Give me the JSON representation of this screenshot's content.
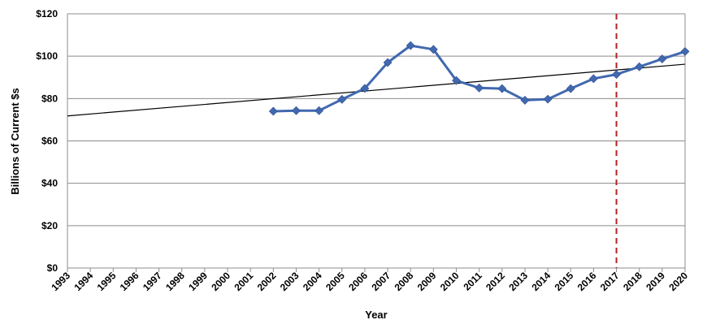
{
  "chart_data": {
    "type": "line",
    "xlabel": "Year",
    "ylabel": "Billions of Current $s",
    "xlim": [
      1993,
      2020
    ],
    "ylim": [
      0,
      120
    ],
    "x_ticks": [
      1993,
      1994,
      1995,
      1996,
      1997,
      1998,
      1999,
      2000,
      2001,
      2002,
      2003,
      2004,
      2005,
      2006,
      2007,
      2008,
      2009,
      2010,
      2011,
      2012,
      2013,
      2014,
      2015,
      2016,
      2017,
      2018,
      2019,
      2020
    ],
    "y_ticks": [
      {
        "value": 0,
        "label": "$0"
      },
      {
        "value": 20,
        "label": "$20"
      },
      {
        "value": 40,
        "label": "$40"
      },
      {
        "value": 60,
        "label": "$60"
      },
      {
        "value": 80,
        "label": "$80"
      },
      {
        "value": 100,
        "label": "$100"
      },
      {
        "value": 120,
        "label": "$120"
      }
    ],
    "grid": "horizontal",
    "series": [
      {
        "marker": "diamond",
        "color": "#4169B0",
        "x": [
          2002,
          2003,
          2004,
          2005,
          2006,
          2007,
          2008,
          2009,
          2010,
          2011,
          2012,
          2013,
          2014,
          2015,
          2016,
          2017,
          2018,
          2019,
          2020
        ],
        "values": [
          74,
          74.3,
          74.3,
          79.6,
          84.8,
          97,
          105,
          103.2,
          88.5,
          85,
          84.7,
          79.2,
          79.7,
          84.7,
          89.4,
          91.4,
          95,
          98.7,
          102.2
        ]
      }
    ],
    "trendline": {
      "color": "#000000",
      "x": [
        1993,
        2020
      ],
      "values": [
        71.8,
        96.2
      ]
    },
    "marker_line": {
      "x": 2017,
      "style": "dashed",
      "color": "#B22222"
    }
  }
}
